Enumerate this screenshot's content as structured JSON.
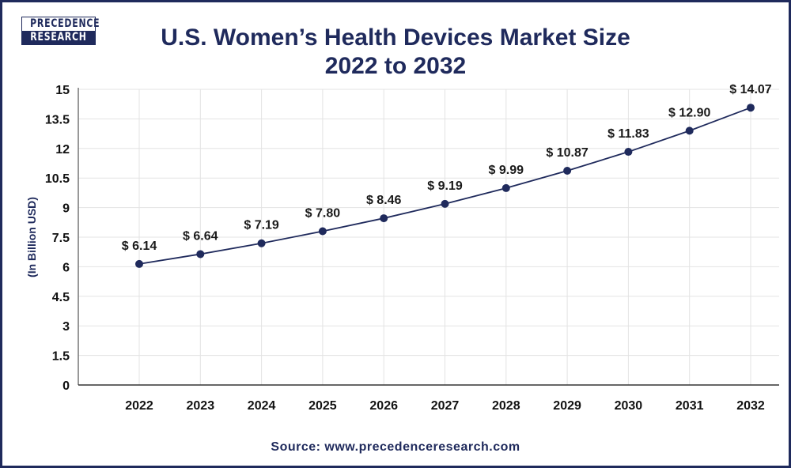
{
  "logo": {
    "line1": "PRECEDENCE",
    "line2": "RESEARCH"
  },
  "source": "Source: www.precedenceresearch.com",
  "colors": {
    "line": "#1f2a5c",
    "marker": "#1f2a5c",
    "grid": "#e3e3e3",
    "border": "#1f2a5c"
  },
  "chart_data": {
    "type": "line",
    "title": "U.S. Women’s Health Devices Market Size",
    "subtitle": "2022 to 2032",
    "xlabel": "",
    "ylabel": "(In Billion USD)",
    "categories": [
      "2022",
      "2023",
      "2024",
      "2025",
      "2026",
      "2027",
      "2028",
      "2029",
      "2030",
      "2031",
      "2032"
    ],
    "values": [
      6.14,
      6.64,
      7.19,
      7.8,
      8.46,
      9.19,
      9.99,
      10.87,
      11.83,
      12.9,
      14.07
    ],
    "data_labels": [
      "$ 6.14",
      "$ 6.64",
      "$ 7.19",
      "$ 7.80",
      "$ 8.46",
      "$ 9.19",
      "$ 9.99",
      "$ 10.87",
      "$ 11.83",
      "$ 12.90",
      "$ 14.07"
    ],
    "yticks": [
      "0",
      "1.5",
      "3",
      "4.5",
      "6",
      "7.5",
      "9",
      "10.5",
      "12",
      "13.5",
      "15"
    ],
    "ylim": [
      0,
      15
    ],
    "grid": true
  }
}
